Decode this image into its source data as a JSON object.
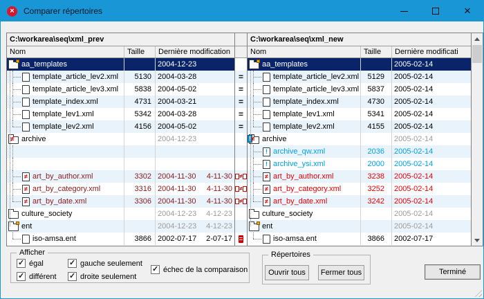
{
  "window": {
    "title": "Comparer répertoires"
  },
  "colors": {
    "accent": "#1996d6",
    "selection": "#0a246a",
    "stripe": "#e9f3fb",
    "red": "#e80000",
    "dark_red": "#8b1a1a",
    "cyan": "#00a0e6",
    "gray_date": "#9c9c9c"
  },
  "left_pane": {
    "path": "C:\\workarea\\seq\\xml_prev",
    "columns": [
      "Nom",
      "Taille",
      "Dernière modification"
    ],
    "rows": [
      {
        "name": "aa_templates",
        "icon": "folder-badge",
        "size": "",
        "date": "2004-12-23",
        "date2": "",
        "selected": true,
        "indent": 0
      },
      {
        "name": "template_article_lev2.xml",
        "icon": "file",
        "size": "5130",
        "date": "2004-03-28",
        "date2": "",
        "indent": 1
      },
      {
        "name": "template_article_lev3.xml",
        "icon": "file",
        "size": "5838",
        "date": "2004-05-02",
        "date2": "",
        "indent": 1
      },
      {
        "name": "template_index.xml",
        "icon": "file",
        "size": "4731",
        "date": "2004-03-21",
        "date2": "",
        "indent": 1
      },
      {
        "name": "template_lev1.xml",
        "icon": "file",
        "size": "5342",
        "date": "2004-03-28",
        "date2": "",
        "indent": 1
      },
      {
        "name": "template_lev2.xml",
        "icon": "file",
        "size": "4156",
        "date": "2004-05-02",
        "date2": "",
        "indent": 1,
        "last": true
      },
      {
        "name": "archive",
        "icon": "folder-neq",
        "size": "",
        "date": "2004-12-23",
        "date2": "",
        "indent": 0,
        "gray_date": true
      },
      {
        "empty": true,
        "indent": 1
      },
      {
        "empty": true,
        "indent": 1
      },
      {
        "name": "art_by_author.xml",
        "icon": "file-neq",
        "size": "3302",
        "date": "2004-11-30",
        "date2": "4-11-30",
        "indent": 1,
        "cls": "darkred"
      },
      {
        "name": "art_by_category.xml",
        "icon": "file-neq",
        "size": "3316",
        "date": "2004-11-30",
        "date2": "4-11-30",
        "indent": 1,
        "cls": "darkred"
      },
      {
        "name": "art_by_date.xml",
        "icon": "file-neq",
        "size": "3306",
        "date": "2004-11-30",
        "date2": "4-11-30",
        "indent": 1,
        "cls": "darkred",
        "last": true
      },
      {
        "name": "culture_society",
        "icon": "folder",
        "size": "",
        "date": "2004-12-23",
        "date2": "4-12-23",
        "indent": 0,
        "gray_date": true
      },
      {
        "name": "ent",
        "icon": "folder-badge",
        "size": "",
        "date": "2004-12-23",
        "date2": "4-12-23",
        "indent": 0,
        "gray_date": true
      },
      {
        "name": "iso-amsa.ent",
        "icon": "file",
        "size": "3866",
        "date": "2002-07-17",
        "date2": "2-07-17",
        "indent": 1,
        "last": true
      }
    ]
  },
  "right_pane": {
    "path": "C:\\workarea\\seq\\xml_new",
    "columns": [
      "Nom",
      "Taille",
      "Dernière modificati"
    ],
    "rows": [
      {
        "name": "aa_templates",
        "icon": "folder-badge",
        "size": "",
        "date": "2005-02-14",
        "date2": "",
        "selected": true,
        "indent": 0
      },
      {
        "name": "template_article_lev2.xml",
        "icon": "file",
        "size": "5129",
        "date": "2005-02-14",
        "date2": "",
        "indent": 1
      },
      {
        "name": "template_article_lev3.xml",
        "icon": "file",
        "size": "5837",
        "date": "2005-02-14",
        "date2": "",
        "indent": 1
      },
      {
        "name": "template_index.xml",
        "icon": "file",
        "size": "4730",
        "date": "2005-02-14",
        "date2": "",
        "indent": 1
      },
      {
        "name": "template_lev1.xml",
        "icon": "file",
        "size": "5341",
        "date": "2005-02-14",
        "date2": "",
        "indent": 1
      },
      {
        "name": "template_lev2.xml",
        "icon": "file",
        "size": "4155",
        "date": "2005-02-14",
        "date2": "",
        "indent": 1,
        "last": true
      },
      {
        "name": "archive",
        "icon": "folder-excl-neq",
        "size": "",
        "date": "2005-02-14",
        "date2": "",
        "indent": 0,
        "gray_date": true
      },
      {
        "name": "archive_qw.xml",
        "icon": "file-excl",
        "size": "2036",
        "date": "2005-02-14",
        "date2": "",
        "indent": 1,
        "cls": "cyan"
      },
      {
        "name": "archive_ysi.xml",
        "icon": "file-excl",
        "size": "2000",
        "date": "2005-02-14",
        "date2": "",
        "indent": 1,
        "cls": "cyan"
      },
      {
        "name": "art_by_author.xml",
        "icon": "file-neq",
        "size": "3238",
        "date": "2005-02-14",
        "date2": "",
        "indent": 1,
        "cls": "red"
      },
      {
        "name": "art_by_category.xml",
        "icon": "file-neq",
        "size": "3252",
        "date": "2005-02-14",
        "date2": "",
        "indent": 1,
        "cls": "red"
      },
      {
        "name": "art_by_date.xml",
        "icon": "file-neq",
        "size": "3242",
        "date": "2005-02-14",
        "date2": "",
        "indent": 1,
        "cls": "red",
        "last": true
      },
      {
        "name": "culture_society",
        "icon": "folder",
        "size": "",
        "date": "2005-02-14",
        "date2": "",
        "indent": 0,
        "gray_date": true
      },
      {
        "name": "ent",
        "icon": "folder-badge",
        "size": "",
        "date": "2005-02-14",
        "date2": "",
        "indent": 0,
        "gray_date": true
      },
      {
        "name": "iso-amsa.ent",
        "icon": "file",
        "size": "3866",
        "date": "2002-07-17",
        "date2": "",
        "indent": 1,
        "last": true
      }
    ]
  },
  "compare_icons": [
    "",
    "eq",
    "eq",
    "eq",
    "eq",
    "eq",
    "",
    "",
    "",
    "neq",
    "neq",
    "neq",
    "",
    "",
    "fail"
  ],
  "filters": {
    "legend": "Afficher",
    "checkboxes": [
      {
        "label": "égal",
        "checked": true
      },
      {
        "label": "différent",
        "checked": true
      },
      {
        "label": "gauche seulement",
        "checked": true
      },
      {
        "label": "droite seulement",
        "checked": true
      },
      {
        "label": "échec de la comparaison",
        "checked": true
      }
    ]
  },
  "directories_group": {
    "legend": "Répertoires",
    "buttons": [
      {
        "label": "Ouvrir tous"
      },
      {
        "label": "Fermer tous"
      }
    ]
  },
  "done_button": {
    "label": "Terminé"
  }
}
